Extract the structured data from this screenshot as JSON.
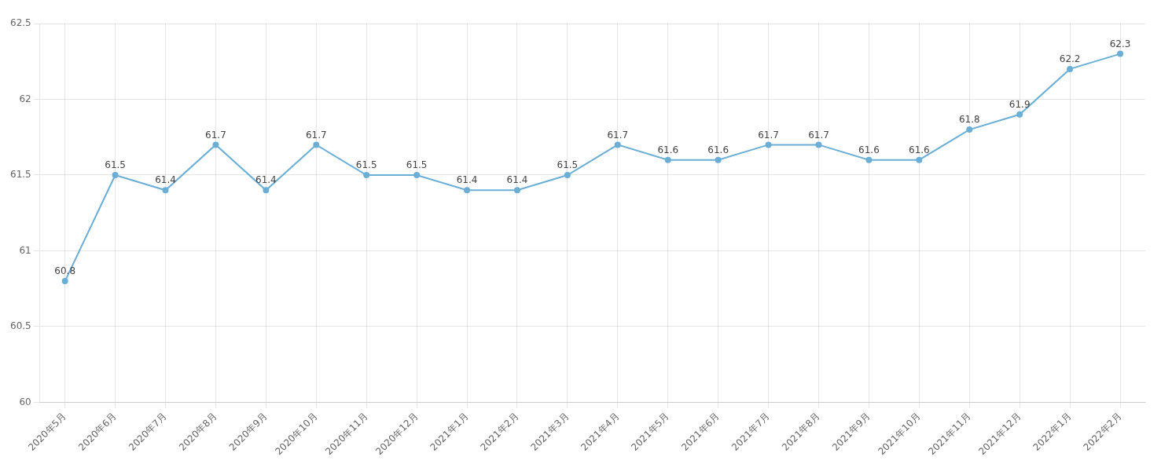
{
  "chart_data": {
    "type": "line",
    "categories": [
      "2020年5月",
      "2020年6月",
      "2020年7月",
      "2020年8月",
      "2020年9月",
      "2020年10月",
      "2020年11月",
      "2020年12月",
      "2021年1月",
      "2021年2月",
      "2021年3月",
      "2021年4月",
      "2021年5月",
      "2021年6月",
      "2021年7月",
      "2021年8月",
      "2021年9月",
      "2021年10月",
      "2021年11月",
      "2021年12月",
      "2022年1月",
      "2022年2月"
    ],
    "values": [
      60.8,
      61.5,
      61.4,
      61.7,
      61.4,
      61.7,
      61.5,
      61.5,
      61.4,
      61.4,
      61.5,
      61.7,
      61.6,
      61.6,
      61.7,
      61.7,
      61.6,
      61.6,
      61.8,
      61.9,
      62.2,
      62.3
    ],
    "color": "#6baed6",
    "marker": "circle",
    "ylim": [
      60,
      62.5
    ],
    "yticks": [
      60,
      60.5,
      61,
      61.5,
      62,
      62.5
    ],
    "grid": true,
    "data_labels": true
  }
}
